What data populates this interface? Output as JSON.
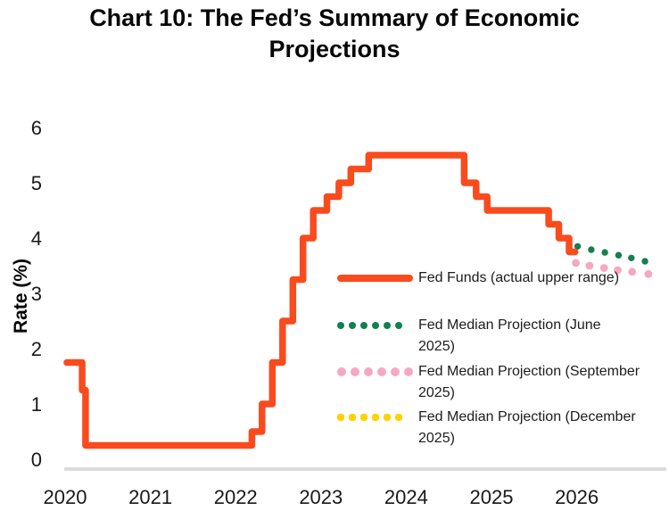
{
  "title": {
    "text": "Chart 10: The Fed’s Summary of Economic Projections"
  },
  "chart_data": {
    "type": "line",
    "title": "Chart 10: The Fed’s Summary of Economic Projections",
    "xlabel": "",
    "ylabel": "Rate (%)",
    "x_ticks": [
      2020,
      2021,
      2022,
      2023,
      2024,
      2025,
      2026
    ],
    "y_ticks": [
      0,
      1,
      2,
      3,
      4,
      5,
      6
    ],
    "xlim": [
      2019.87,
      2027.05
    ],
    "ylim": [
      0,
      6
    ],
    "grid": false,
    "legend_position": "inside-center-right",
    "axis_line_color": "#dcdcde",
    "series": [
      {
        "key": "fed-funds",
        "name": "Fed Funds (actual upper range)",
        "style": "solid",
        "color": "#F94B1D",
        "points": [
          [
            2020.02,
            1.75
          ],
          [
            2020.2,
            1.25
          ],
          [
            2020.24,
            0.25
          ],
          [
            2022.19,
            0.5
          ],
          [
            2022.31,
            1.0
          ],
          [
            2022.43,
            1.75
          ],
          [
            2022.55,
            2.5
          ],
          [
            2022.67,
            3.25
          ],
          [
            2022.79,
            4.0
          ],
          [
            2022.91,
            4.5
          ],
          [
            2023.07,
            4.75
          ],
          [
            2023.21,
            5.0
          ],
          [
            2023.35,
            5.25
          ],
          [
            2023.56,
            5.5
          ],
          [
            2024.68,
            5.0
          ],
          [
            2024.82,
            4.75
          ],
          [
            2024.95,
            4.5
          ],
          [
            2025.67,
            4.25
          ],
          [
            2025.79,
            4.0
          ],
          [
            2025.91,
            3.75
          ],
          [
            2025.98,
            3.75
          ]
        ]
      },
      {
        "key": "june-2025",
        "name": "Fed Median Projection (June 2025)",
        "style": "dots",
        "color": "#12804F",
        "dot_radius": 3.7,
        "points": [
          [
            2026.01,
            3.85
          ],
          [
            2026.17,
            3.79
          ],
          [
            2026.33,
            3.74
          ],
          [
            2026.49,
            3.69
          ],
          [
            2026.64,
            3.64
          ],
          [
            2026.8,
            3.58
          ]
        ]
      },
      {
        "key": "september-2025",
        "name": "Fed Median Projection (September 2025)",
        "style": "dots",
        "color": "#F8A7C1",
        "dot_radius": 4.4,
        "points": [
          [
            2025.99,
            3.55
          ],
          [
            2026.15,
            3.5
          ],
          [
            2026.32,
            3.46
          ],
          [
            2026.48,
            3.42
          ],
          [
            2026.65,
            3.39
          ],
          [
            2026.84,
            3.35
          ]
        ]
      },
      {
        "key": "december-2025",
        "name": "Fed Median Projection (December 2025)",
        "style": "dots",
        "color": "#FFD201",
        "dot_radius": 3.7,
        "points": [
          [
            2025.99,
            3.55
          ],
          [
            2026.15,
            3.5
          ],
          [
            2026.32,
            3.46
          ],
          [
            2026.48,
            3.42
          ],
          [
            2026.65,
            3.39
          ],
          [
            2026.84,
            3.35
          ]
        ]
      }
    ]
  },
  "legend": {
    "entries": [
      {
        "series": 0,
        "lines": [
          "Fed Funds (actual upper range)",
          ""
        ]
      },
      {
        "series": 1,
        "lines": [
          "Fed Median Projection (June",
          "2025)"
        ]
      },
      {
        "series": 2,
        "lines": [
          "Fed Median Projection (September",
          "2025)"
        ]
      },
      {
        "series": 3,
        "lines": [
          "Fed Median Projection (December",
          "2025)"
        ]
      }
    ]
  }
}
